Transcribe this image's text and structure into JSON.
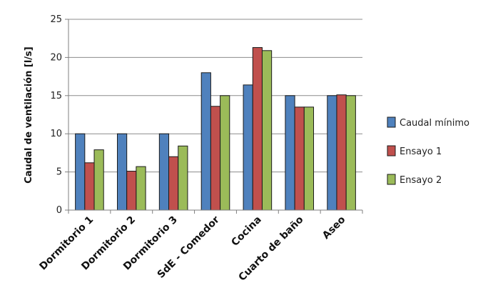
{
  "chart_data": {
    "type": "bar",
    "categories": [
      "Dormitorio 1",
      "Dormitorio 2",
      "Dormitorio 3",
      "SdE - Comedor",
      "Cocina",
      "Cuarto de baño",
      "Aseo"
    ],
    "series": [
      {
        "name": "Caudal mínimo",
        "color": "#4f81bd",
        "values": [
          10,
          10,
          10,
          18,
          16.4,
          15,
          15
        ]
      },
      {
        "name": "Ensayo 1",
        "color": "#c0504d",
        "values": [
          6.2,
          5.1,
          7,
          13.6,
          21.3,
          13.5,
          15.1
        ]
      },
      {
        "name": "Ensayo 2",
        "color": "#9bbb59",
        "values": [
          7.9,
          5.7,
          8.4,
          15,
          20.9,
          13.5,
          15
        ]
      }
    ],
    "title": "",
    "xlabel": "",
    "ylabel": "Caudal de ventilación [l/s]",
    "ylim": [
      0,
      25
    ],
    "yticks": [
      "0",
      "5",
      "10",
      "15",
      "20",
      "25"
    ],
    "grid": "horizontal",
    "legend_position": "right"
  }
}
